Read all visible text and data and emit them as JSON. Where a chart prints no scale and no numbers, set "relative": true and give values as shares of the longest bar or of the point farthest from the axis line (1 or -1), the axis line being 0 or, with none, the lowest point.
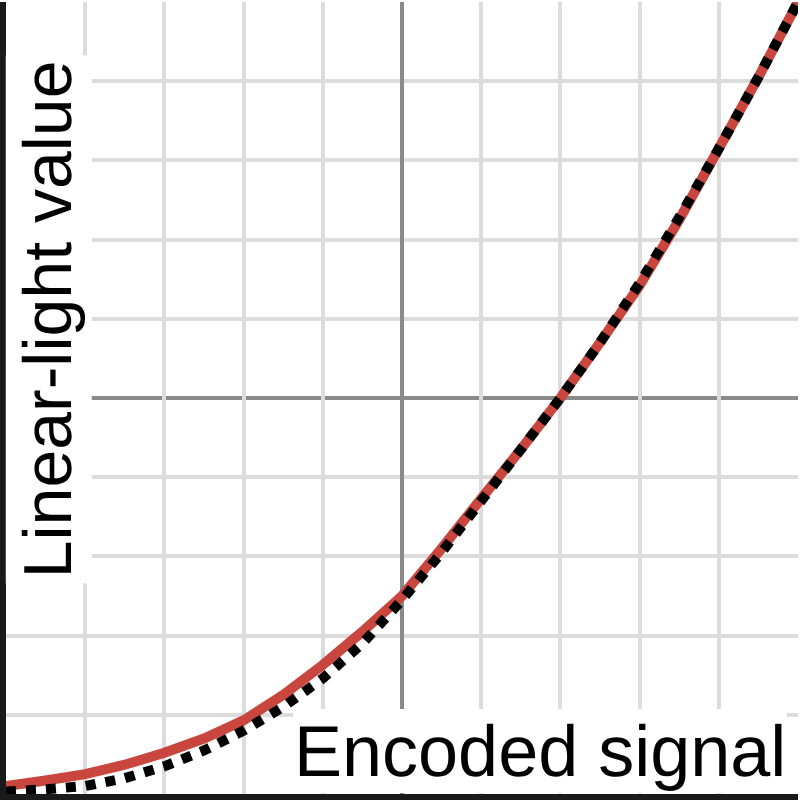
{
  "chart_data": {
    "type": "line",
    "xlabel": "Encoded signal",
    "ylabel": "Linear-light value",
    "relative": true,
    "grid": true,
    "categories": [
      null,
      null,
      null,
      null,
      null,
      null,
      null,
      null,
      null,
      null,
      null,
      null,
      null,
      null,
      null,
      null,
      null,
      null,
      null,
      null,
      null
    ],
    "ref_lines": [
      {
        "axis": "y",
        "value": 0.5,
        "color": "#8a8a8a"
      }
    ],
    "series": [
      {
        "color": "#c9463f",
        "line_style": "solid",
        "values": [
          0.01,
          0.017,
          0.025,
          0.037,
          0.052,
          0.07,
          0.093,
          0.125,
          0.163,
          0.205,
          0.25,
          0.31,
          0.373,
          0.435,
          0.5,
          0.57,
          0.642,
          0.725,
          0.815,
          0.905,
          1
        ]
      },
      {
        "color": "#000000",
        "line_style": "dotted",
        "values": [
          0.003,
          0.006,
          0.01,
          0.02,
          0.035,
          0.055,
          0.08,
          0.11,
          0.146,
          0.19,
          0.245,
          0.305,
          0.37,
          0.435,
          0.5,
          0.57,
          0.645,
          0.728,
          0.815,
          0.905,
          1
        ]
      }
    ]
  }
}
